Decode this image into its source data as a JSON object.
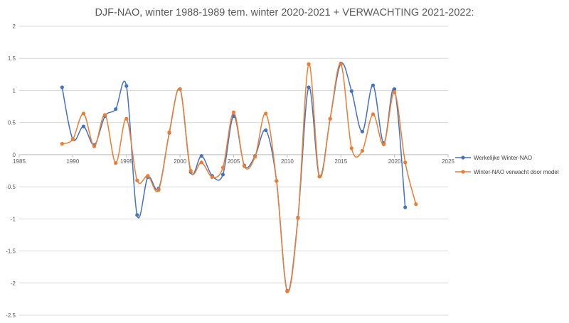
{
  "chart_data": {
    "type": "scatter",
    "title": "DJF-NAO, winter 1988-1989 tem. winter 2020-2021 + VERWACHTING 2021-2022:",
    "xlabel": "",
    "ylabel": "",
    "xlim": [
      1985,
      2025
    ],
    "ylim": [
      -2.5,
      2
    ],
    "x_ticks": [
      "1985",
      "1990",
      "1995",
      "2000",
      "2005",
      "2010",
      "2015",
      "2020",
      "2025"
    ],
    "y_ticks": [
      "2",
      "1.5",
      "1",
      "0.5",
      "0",
      "-0.5",
      "-1",
      "-1.5",
      "-2",
      "-2.5"
    ],
    "grid": "horizontal",
    "smoothed_lines": true,
    "legend": {
      "position": "right"
    },
    "series": [
      {
        "name": "Werkelijke Winter-NAO",
        "color": "#4472c4",
        "points": [
          [
            1989,
            1.05
          ],
          [
            1990,
            0.24
          ],
          [
            1991,
            0.44
          ],
          [
            1992,
            0.15
          ],
          [
            1993,
            0.6
          ],
          [
            1994,
            0.71
          ],
          [
            1995,
            1.07
          ],
          [
            1996,
            -0.94
          ],
          [
            1997,
            -0.35
          ],
          [
            1998,
            -0.53
          ],
          [
            1999,
            0.34
          ],
          [
            2000,
            1.02
          ],
          [
            2001,
            -0.27
          ],
          [
            2002,
            -0.02
          ],
          [
            2003,
            -0.33
          ],
          [
            2004,
            -0.31
          ],
          [
            2005,
            0.6
          ],
          [
            2006,
            -0.17
          ],
          [
            2007,
            -0.02
          ],
          [
            2008,
            0.38
          ],
          [
            2009,
            -0.41
          ],
          [
            2010,
            -2.12
          ],
          [
            2011,
            -0.98
          ],
          [
            2012,
            1.05
          ],
          [
            2013,
            -0.34
          ],
          [
            2014,
            0.56
          ],
          [
            2015,
            1.42
          ],
          [
            2016,
            0.99
          ],
          [
            2017,
            0.36
          ],
          [
            2018,
            1.08
          ],
          [
            2019,
            0.18
          ],
          [
            2020,
            1.02
          ],
          [
            2021,
            -0.82
          ]
        ]
      },
      {
        "name": "Winter-NAO verwacht door model",
        "color": "#ed7d31",
        "points": [
          [
            1989,
            0.17
          ],
          [
            1990,
            0.24
          ],
          [
            1991,
            0.64
          ],
          [
            1992,
            0.13
          ],
          [
            1993,
            0.62
          ],
          [
            1994,
            -0.13
          ],
          [
            1995,
            0.56
          ],
          [
            1996,
            -0.4
          ],
          [
            1997,
            -0.33
          ],
          [
            1998,
            -0.55
          ],
          [
            1999,
            0.35
          ],
          [
            2000,
            1.02
          ],
          [
            2001,
            -0.25
          ],
          [
            2002,
            -0.12
          ],
          [
            2003,
            -0.35
          ],
          [
            2004,
            -0.2
          ],
          [
            2005,
            0.66
          ],
          [
            2006,
            -0.18
          ],
          [
            2007,
            -0.03
          ],
          [
            2008,
            0.64
          ],
          [
            2009,
            -0.41
          ],
          [
            2010,
            -2.13
          ],
          [
            2011,
            -0.99
          ],
          [
            2012,
            1.41
          ],
          [
            2013,
            -0.34
          ],
          [
            2014,
            0.56
          ],
          [
            2015,
            1.41
          ],
          [
            2016,
            0.1
          ],
          [
            2017,
            0.06
          ],
          [
            2018,
            0.63
          ],
          [
            2019,
            0.16
          ],
          [
            2020,
            0.97
          ],
          [
            2021,
            -0.12
          ],
          [
            2022,
            -0.77
          ]
        ]
      }
    ]
  }
}
